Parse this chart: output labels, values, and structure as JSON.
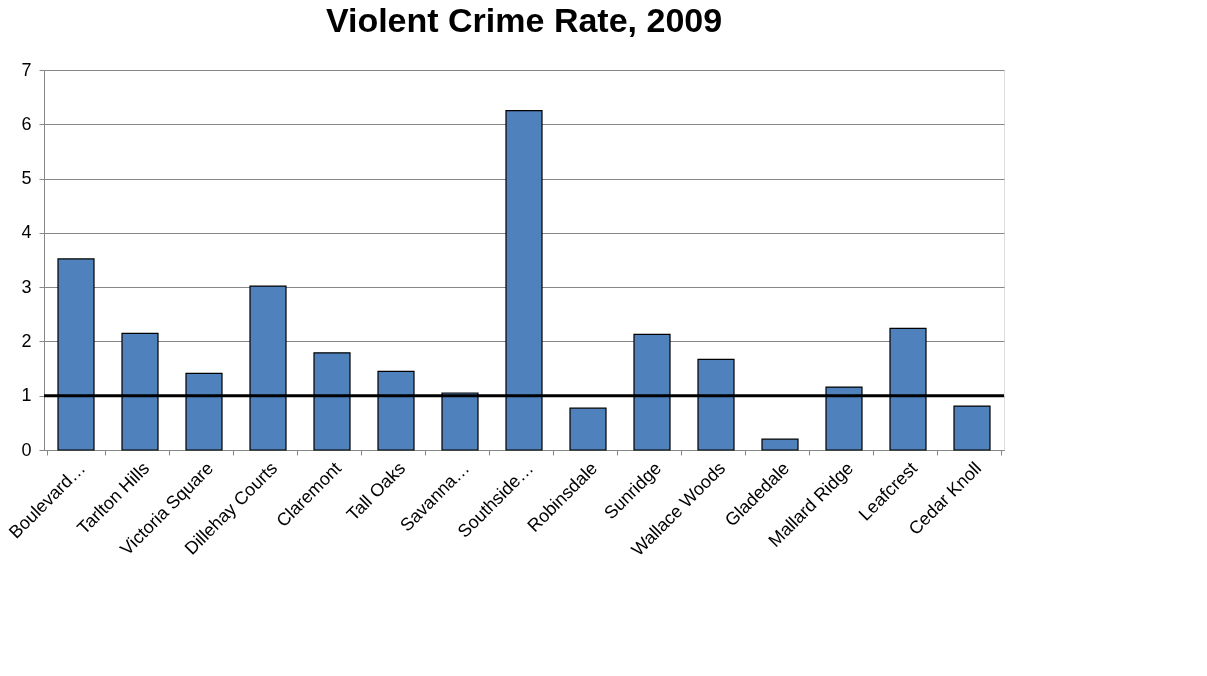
{
  "chart_data": {
    "type": "bar",
    "title": "Violent Crime Rate, 2009",
    "categories": [
      "Boulevard…",
      "Tarlton Hills",
      "Victoria Square",
      "Dillehay Courts",
      "Claremont",
      "Tall Oaks",
      "Savanna…",
      "Southside…",
      "Robinsdale",
      "Sunridge",
      "Wallace Woods",
      "Gladedale",
      "Mallard Ridge",
      "Leafcrest",
      "Cedar Knoll"
    ],
    "values": [
      3.52,
      2.15,
      1.41,
      3.02,
      1.79,
      1.45,
      1.05,
      6.25,
      0.77,
      2.13,
      1.67,
      0.2,
      1.16,
      2.24,
      0.81
    ],
    "color": "#4f81bd",
    "ylim": [
      0,
      7
    ],
    "yticks": [
      0,
      1,
      2,
      3,
      4,
      5,
      6,
      7
    ],
    "grid": "y",
    "ref_lines": [
      {
        "axis": "y",
        "value": 1,
        "color": "#000000"
      }
    ]
  }
}
